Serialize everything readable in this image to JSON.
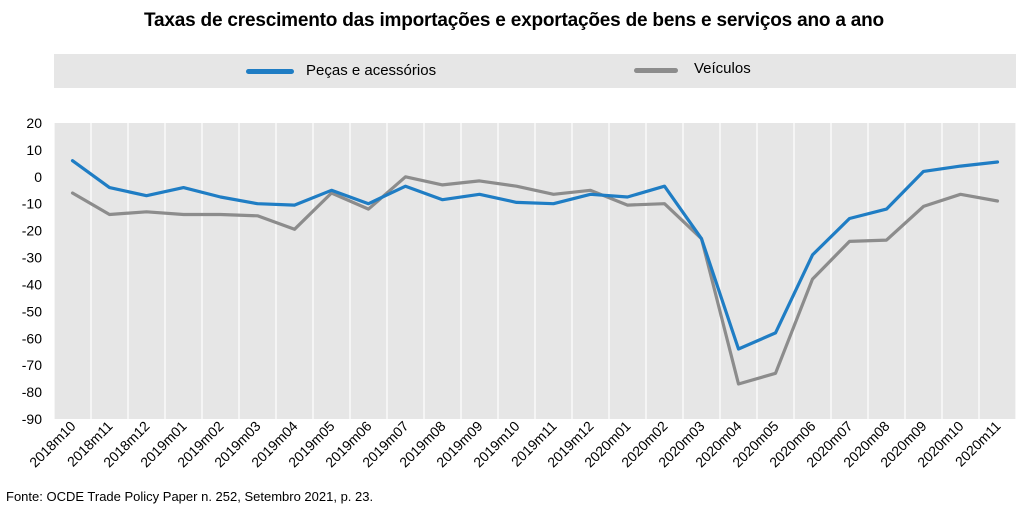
{
  "title": "Taxas de crescimento das importações e exportações de bens e serviços ano a ano",
  "footer": "Fonte: OCDE Trade Policy Paper n. 252, Setembro   2021, p. 23.",
  "chart_data": {
    "type": "line",
    "title": "Taxas de crescimento das importações e exportações de bens e serviços ano a ano",
    "xlabel": "",
    "ylabel": "",
    "ylim": [
      -90,
      20
    ],
    "yticks": [
      20,
      10,
      0,
      -10,
      -20,
      -30,
      -40,
      -50,
      -60,
      -70,
      -80,
      -90
    ],
    "grid": true,
    "legend_position": "top",
    "categories": [
      "2018m10",
      "2018m11",
      "2018m12",
      "2019m01",
      "2019m02",
      "2019m03",
      "2019m04",
      "2019m05",
      "2019m06",
      "2019m07",
      "2019m08",
      "2019m09",
      "2019m10",
      "2019m11",
      "2019m12",
      "2020m01",
      "2020m02",
      "2020m03",
      "2020m04",
      "2020m05",
      "2020m06",
      "2020m07",
      "2020m08",
      "2020m09",
      "2020m10",
      "2020m11"
    ],
    "series": [
      {
        "name": "Peças e acessórios",
        "color": "#1f7dc4",
        "values": [
          6,
          -4,
          -7,
          -4,
          -7.5,
          -10,
          -10.5,
          -5,
          -10,
          -3.5,
          -8.5,
          -6.5,
          -9.5,
          -10,
          -6.5,
          -7.5,
          -3.5,
          -23,
          -64,
          -58,
          -29,
          -15.5,
          -12,
          2,
          4,
          5.5
        ]
      },
      {
        "name": "Veículos",
        "color": "#8c8c8c",
        "values": [
          -6,
          -14,
          -13,
          -14,
          -14,
          -14.5,
          -19.5,
          -6,
          -12,
          0,
          -3,
          -1.5,
          -3.5,
          -6.5,
          -5,
          -10.5,
          -10,
          -23,
          -77,
          -73,
          -38,
          -24,
          -23.5,
          -11,
          -6.5,
          -9
        ]
      }
    ]
  }
}
